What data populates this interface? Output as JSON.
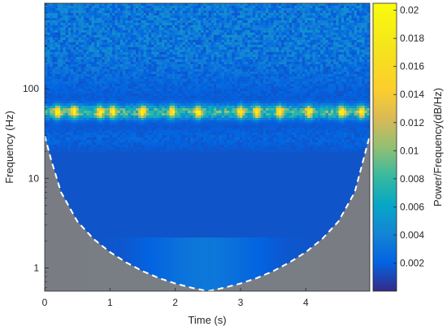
{
  "chart_data": {
    "type": "heatmap",
    "subtype": "wavelet-scalogram",
    "title": "",
    "xlabel": "Time (s)",
    "ylabel": "Frequency (Hz)",
    "colorbar_label": "Power/Frequency(dB/Hz)",
    "xlim": [
      0,
      4.98
    ],
    "ylim": [
      0.55,
      900
    ],
    "yscale": "log",
    "x_ticks": [
      0,
      1,
      2,
      3,
      4
    ],
    "x_tick_labels": [
      "0",
      "1",
      "2",
      "3",
      "4"
    ],
    "y_ticks": [
      1,
      10,
      100
    ],
    "y_tick_labels": [
      "1",
      "10",
      "100"
    ],
    "colorbar_range": [
      0,
      0.0205
    ],
    "colorbar_ticks": [
      0.002,
      0.004,
      0.006,
      0.008,
      0.01,
      0.012,
      0.014,
      0.016,
      0.018,
      0.02
    ],
    "colorbar_tick_labels": [
      "0.002",
      "0.004",
      "0.006",
      "0.008",
      "0.01",
      "0.012",
      "0.014",
      "0.016",
      "0.018",
      "0.02"
    ],
    "colormap": "parula",
    "cone_of_influence": {
      "style": "white dashed line",
      "shaded_color": "#808080",
      "points": [
        {
          "t": 0.0,
          "f": 30
        },
        {
          "t": 0.1,
          "f": 16
        },
        {
          "t": 0.25,
          "f": 7
        },
        {
          "t": 0.5,
          "f": 3.3
        },
        {
          "t": 0.75,
          "f": 2.1
        },
        {
          "t": 1.0,
          "f": 1.5
        },
        {
          "t": 1.25,
          "f": 1.15
        },
        {
          "t": 1.5,
          "f": 0.92
        },
        {
          "t": 1.75,
          "f": 0.77
        },
        {
          "t": 2.0,
          "f": 0.67
        },
        {
          "t": 2.25,
          "f": 0.6
        },
        {
          "t": 2.5,
          "f": 0.55
        },
        {
          "t": 2.75,
          "f": 0.6
        },
        {
          "t": 3.0,
          "f": 0.67
        },
        {
          "t": 3.25,
          "f": 0.77
        },
        {
          "t": 3.5,
          "f": 0.92
        },
        {
          "t": 3.75,
          "f": 1.15
        },
        {
          "t": 4.0,
          "f": 1.5
        },
        {
          "t": 4.25,
          "f": 2.1
        },
        {
          "t": 4.5,
          "f": 3.3
        },
        {
          "t": 4.75,
          "f": 7
        },
        {
          "t": 4.88,
          "f": 16
        },
        {
          "t": 4.98,
          "f": 30
        }
      ]
    },
    "features": {
      "gamma_band_center_hz": 55,
      "gamma_band_peak_times_s": [
        0.2,
        0.45,
        0.85,
        1.05,
        1.5,
        1.95,
        2.35,
        3.0,
        3.25,
        3.6,
        4.05,
        4.55,
        4.85
      ],
      "background_level": 0.0015,
      "band_peak_level": 0.019
    }
  }
}
